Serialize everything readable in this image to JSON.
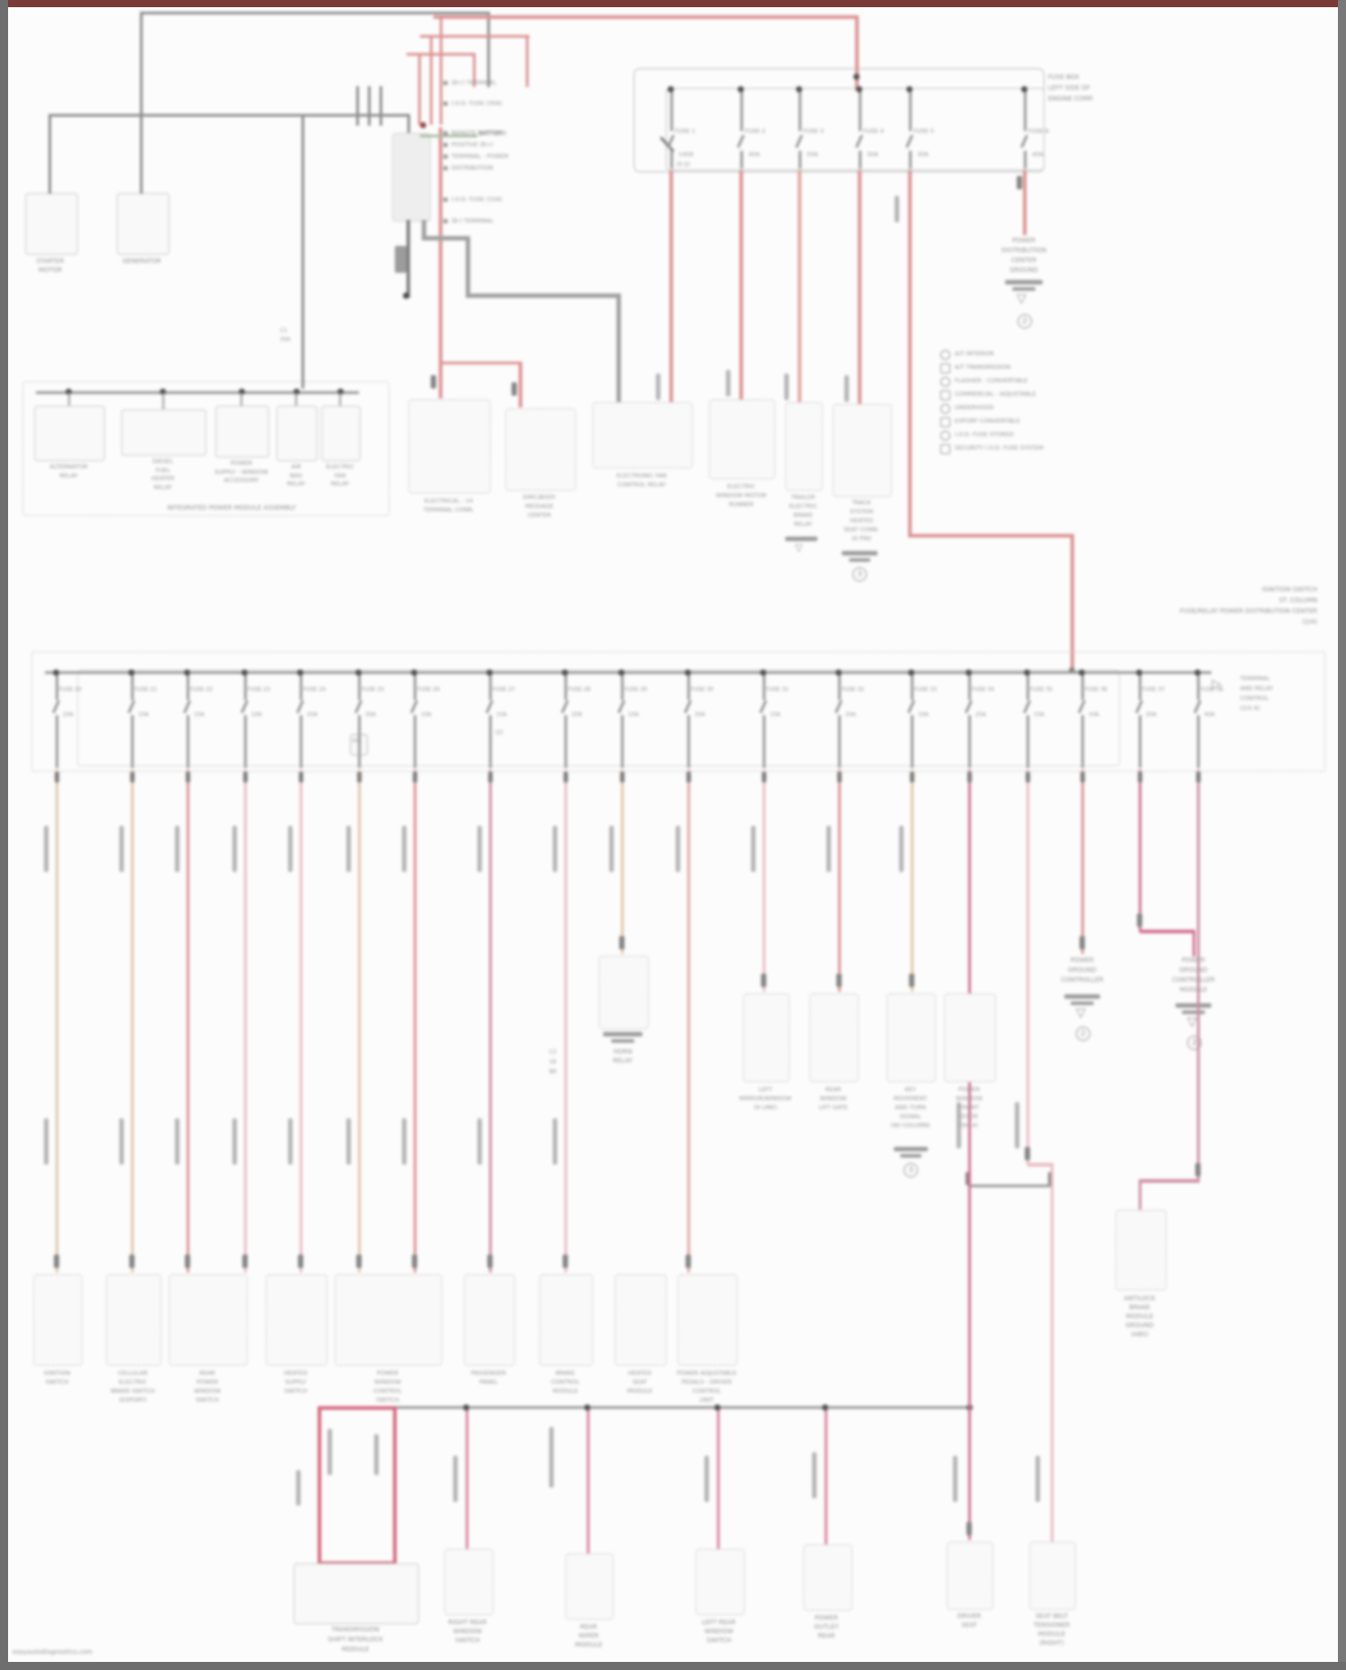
{
  "frame": {
    "watermark": "easyautodiagnostics.com"
  },
  "colors": {
    "wire_red": "#e89090",
    "wire_salmon": "#eda59e",
    "wire_tan": "#e9c9a4",
    "wire_pink": "#f3bcc8",
    "wire_magenta": "#e06a92",
    "wire_crimson": "#d98ba6",
    "wire_gray": "#9a9a9a",
    "wire_dark": "#7d7d7d",
    "tick_green": "#a9c0a2",
    "frame_top": "#7a3a38",
    "frame_side": "#6e6e6e"
  },
  "top_left": {
    "comp1": [
      "STARTER",
      "MOTOR"
    ],
    "comp2": [
      "GENERATOR"
    ]
  },
  "battery": {
    "label": "BATTERY",
    "callouts": [
      "(B+) TERMINAL",
      "I.O.D. FUSE (30A)",
      "REMOTE BATTERY",
      "POSITIVE (B+)",
      "TERMINAL - POWER",
      "DISTRIBUTION",
      "I.O.D. FUSE (15A)",
      "(B-) TERMINAL"
    ],
    "connector": "C1",
    "tap": "30A"
  },
  "fusebox": {
    "title": [
      "FUSE BOX",
      "LEFT SIDE OF",
      "ENGINE COMP."
    ],
    "fuses": [
      {
        "name": "FUSE 1",
        "amp": "140A",
        "note": "(6 G)"
      },
      {
        "name": "FUSE 2",
        "amp": "40A",
        "note": ""
      },
      {
        "name": "FUSE 3",
        "amp": "50A",
        "note": ""
      },
      {
        "name": "FUSE 4",
        "amp": "30A",
        "note": ""
      },
      {
        "name": "FUSE 5",
        "amp": "30A",
        "note": ""
      },
      {
        "name": "FUSE 6",
        "amp": "40A",
        "note": ""
      }
    ]
  },
  "pdc_ground": {
    "lines": [
      "POWER",
      "DISTRIBUTION",
      "CENTER",
      "GROUND"
    ],
    "num": "2"
  },
  "legend": {
    "items": [
      "A/T INTERIOR",
      "A/T TRANSMISSION",
      "FLASHER - CONVERTIBLE",
      "COMMERCIAL - ADJUSTABLE",
      "UNDERHOOD",
      "EXPORT CONVERTIBLE",
      "I.O.D. FUSE STORED",
      "SECURITY I.O.D. FUSE SYSTEM"
    ]
  },
  "relay_box": {
    "caption": "INTEGRATED POWER MODULE ASSEMBLY",
    "relays": [
      [
        "ALTERNATOR",
        "RELAY"
      ],
      [
        "DIESEL",
        "FUEL",
        "HEATER",
        "RELAY"
      ],
      [
        "POWER",
        "SUPPLY - WINDOW",
        "ACCESSORY"
      ],
      [
        "AIR",
        "BAG",
        "RELAY"
      ],
      [
        "ELECTRIC",
        "FAN",
        "RELAY"
      ]
    ]
  },
  "mid_comps": [
    {
      "lines": [
        "ELECTRICAL - 14",
        "TERMINAL CONN."
      ]
    },
    {
      "lines": [
        "EMIC/BODY",
        "MESSAGE",
        "CENTER"
      ]
    },
    {
      "lines": [
        "ELECTRONIC FAN",
        "CONTROL RELAY"
      ]
    },
    {
      "lines": [
        "ELECTRIC",
        "WINDOW MOTOR",
        "RUNNER"
      ]
    },
    {
      "lines": [
        "TRAILER",
        "ELECTRIC",
        "BRAKE",
        "RELAY"
      ]
    },
    {
      "lines": [
        "TRACK",
        "SYSTEM",
        "HEATED",
        "SEAT CONN.",
        "(6 PIN)"
      ],
      "num": "3"
    }
  ],
  "band": {
    "title": [
      "IGNITION SWITCH",
      "ST. COLUMN",
      "FUSE/RELAY POWER DISTRIBUTION CENTER",
      "(2/4)"
    ],
    "note": [
      "TERMINAL",
      "AND RELAY",
      "CONTROL",
      "(2/4 A)"
    ],
    "extra6": "30A",
    "extra8": "(2)",
    "fuses": [
      {
        "name": "FUSE 20",
        "amp": "20A"
      },
      {
        "name": "FUSE 21",
        "amp": "10A"
      },
      {
        "name": "FUSE 22",
        "amp": "15A"
      },
      {
        "name": "FUSE 23",
        "amp": "10A"
      },
      {
        "name": "FUSE 24",
        "amp": "25A"
      },
      {
        "name": "FUSE 25",
        "amp": "30A"
      },
      {
        "name": "FUSE 26",
        "amp": "10A"
      },
      {
        "name": "FUSE 27",
        "amp": "15A"
      },
      {
        "name": "FUSE 28",
        "amp": "20A"
      },
      {
        "name": "FUSE 29",
        "amp": "10A"
      },
      {
        "name": "FUSE 30",
        "amp": "30A"
      },
      {
        "name": "FUSE 31",
        "amp": "15A"
      },
      {
        "name": "FUSE 32",
        "amp": "20A"
      },
      {
        "name": "FUSE 33",
        "amp": "10A"
      },
      {
        "name": "FUSE 34",
        "amp": "25A"
      },
      {
        "name": "FUSE 35",
        "amp": "15A"
      },
      {
        "name": "FUSE 36",
        "amp": "10A"
      },
      {
        "name": "FUSE 37",
        "amp": "20A"
      },
      {
        "name": "FUSE 38",
        "amp": "40A"
      }
    ]
  },
  "bottom_row": [
    {
      "lines": [
        "IGNITION",
        "SWITCH"
      ]
    },
    {
      "lines": [
        "CELLULAR",
        "ELECTRIC",
        "BRAKE SWITCH",
        "(EXPORT)"
      ]
    },
    {
      "lines": [
        "REAR",
        "POWER",
        "WINDOW",
        "SWITCH"
      ]
    },
    {
      "lines": [
        "HEATED",
        "SUPPLY",
        "SWITCH"
      ]
    },
    {
      "lines": [
        "POWER",
        "WINDOW",
        "CONTROL",
        "SWITCH"
      ]
    },
    {
      "lines": [
        "PASSENGER",
        "PANEL"
      ]
    },
    {
      "lines": [
        "BRAKE",
        "CONTROL",
        "MODULE"
      ]
    },
    {
      "lines": [
        "HEATED",
        "SEAT",
        "MODULE"
      ]
    },
    {
      "lines": [
        "POWER ADJUSTABLE",
        "PEDALS - DRIVER",
        "CONTROL",
        "UNIT"
      ]
    }
  ],
  "m2": {
    "lines": [
      "HORN",
      "RELAY"
    ]
  },
  "w9_tag": [
    "C2",
    "18",
    "BR"
  ],
  "right_row": [
    {
      "lines": [
        "LEFT",
        "MIRROR/WINDOW",
        "(9 LINE)"
      ]
    },
    {
      "lines": [
        "REAR",
        "WINDOW",
        "LIFT GATE"
      ]
    },
    {
      "lines": [
        "KEY",
        "MOVEMENT",
        "AND TURN",
        "SIGNAL",
        "(W/ COLUMN)"
      ],
      "num": "3"
    },
    {
      "lines": [
        "POWER",
        "WINDOW",
        "FRONT",
        "DOOR",
        "(9/14)"
      ]
    }
  ],
  "g1": {
    "lines": [
      "POWER",
      "GROUND",
      "CONTROLLER"
    ],
    "num": "2"
  },
  "g2": {
    "lines": [
      "POWER",
      "GROUND",
      "CONTROLLER",
      "MODULE"
    ],
    "num": "2"
  },
  "dashed_comp": {
    "lines": [
      "ANTILOCK",
      "BRAKE",
      "MODULE",
      "GROUND",
      "(ABS)"
    ]
  },
  "bottom_bus": {
    "big": [
      "TRANSMISSION",
      "SHIFT INTERLOCK",
      "MODULE"
    ],
    "c": [
      "RIGHT REAR",
      "WINDOW",
      "SWITCH"
    ],
    "d": [
      "REAR",
      "WIPER",
      "MODULE"
    ],
    "e": [
      "LEFT REAR",
      "WINDOW",
      "SWITCH"
    ],
    "f": [
      "POWER",
      "OUTLET",
      "REAR"
    ],
    "a": [
      "DRIVER",
      "SEAT"
    ],
    "b": [
      "SEAT BELT",
      "TENSIONER",
      "MODULE",
      "(RIGHT)"
    ]
  }
}
